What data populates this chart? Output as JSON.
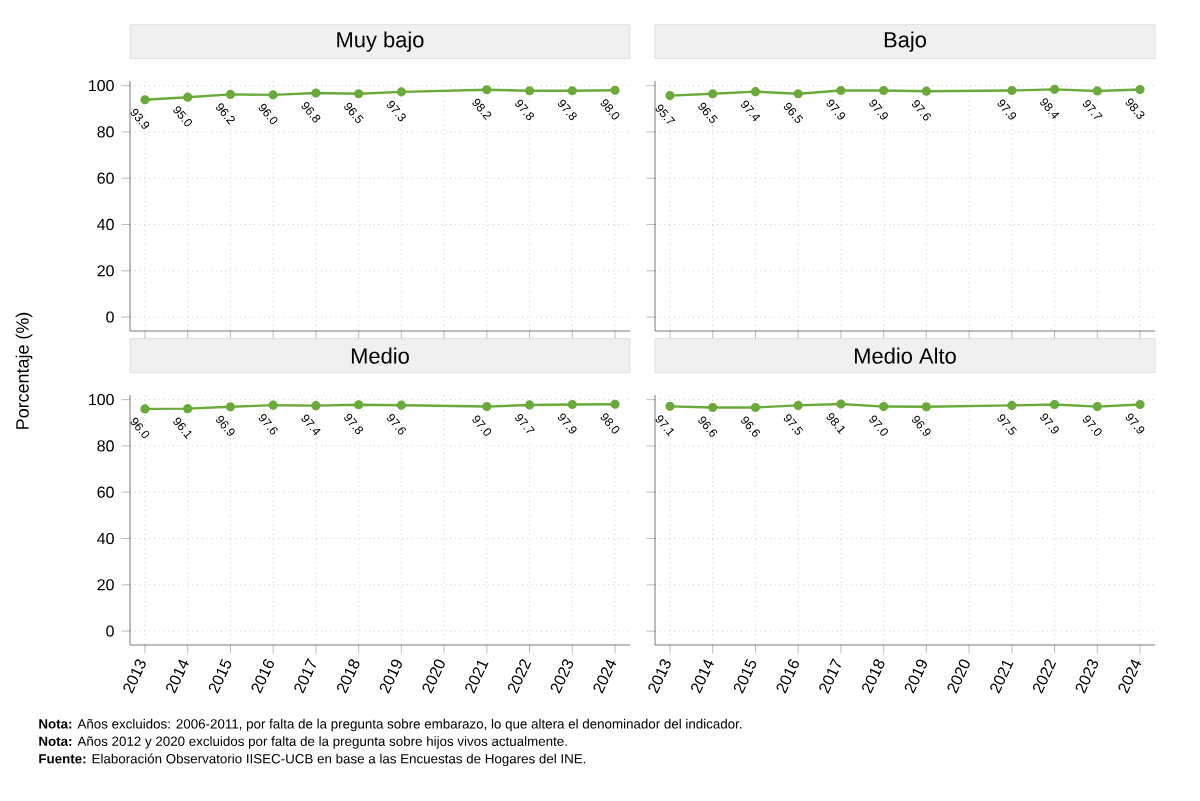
{
  "chart_data": [
    {
      "type": "line",
      "title": "Muy bajo",
      "ylabel": "Porcentaje (%)",
      "annotations": [
        "**Nota:** Años excluidos: 2006-2011, por falta de la pregunta sobre embarazo, lo que altera el denominador del indicador.",
        "**Nota:** Años 2012 y 2020 excluidos por falta de la pregunta sobre hijos vivos actualmente.",
        "**Fuente:** Elaboración Observatorio IISEC-UCB en base a las Encuestas de Hogares del INE."
      ],
      "x": [
        2013,
        2014,
        2015,
        2016,
        2017,
        2018,
        2019,
        2021,
        2022,
        2023,
        2024
      ],
      "values": [
        93.9,
        95.0,
        96.2,
        96.0,
        96.8,
        96.5,
        97.3,
        98.2,
        97.8,
        97.8,
        98.0
      ],
      "value_labels": [
        "93.9",
        "95.0",
        "96.2",
        "96.0",
        "96.8",
        "96.5",
        "97.3",
        "98.2",
        "97.8",
        "97.8",
        "98.0"
      ],
      "color": "#6aaa3a",
      "marker": "circle",
      "xlim": [
        2012.65,
        2024.35
      ],
      "ylim": [
        -6,
        102
      ],
      "xticks": [
        2013,
        2014,
        2015,
        2016,
        2017,
        2018,
        2019,
        2020,
        2021,
        2022,
        2023,
        2024
      ],
      "yticks": [
        0,
        20,
        40,
        60,
        80,
        100
      ],
      "grid": true,
      "tick_labels": "y"
    },
    {
      "type": "line",
      "title": "Bajo",
      "x": [
        2013,
        2014,
        2015,
        2016,
        2017,
        2018,
        2019,
        2021,
        2022,
        2023,
        2024
      ],
      "values": [
        95.7,
        96.5,
        97.4,
        96.5,
        97.9,
        97.9,
        97.6,
        97.9,
        98.4,
        97.7,
        98.3
      ],
      "value_labels": [
        "95.7",
        "96.5",
        "97.4",
        "96.5",
        "97.9",
        "97.9",
        "97.6",
        "97.9",
        "98.4",
        "97.7",
        "98.3"
      ],
      "color": "#6aaa3a",
      "marker": "circle",
      "xlim": [
        2012.65,
        2024.35
      ],
      "ylim": [
        -6,
        102
      ],
      "xticks": [
        2013,
        2014,
        2015,
        2016,
        2017,
        2018,
        2019,
        2020,
        2021,
        2022,
        2023,
        2024
      ],
      "yticks": [
        0,
        20,
        40,
        60,
        80,
        100
      ],
      "grid": true,
      "tick_labels": false
    },
    {
      "type": "line",
      "title": "Medio",
      "x": [
        2013,
        2014,
        2015,
        2016,
        2017,
        2018,
        2019,
        2021,
        2022,
        2023,
        2024
      ],
      "values": [
        96.0,
        96.1,
        96.9,
        97.6,
        97.4,
        97.8,
        97.6,
        97.0,
        97.7,
        97.9,
        98.0
      ],
      "value_labels": [
        "96.0",
        "96.1",
        "96.9",
        "97.6",
        "97.4",
        "97.8",
        "97.6",
        "97.0",
        "97.7",
        "97.9",
        "98.0"
      ],
      "color": "#6aaa3a",
      "marker": "circle",
      "xlim": [
        2012.65,
        2024.35
      ],
      "ylim": [
        -6,
        102
      ],
      "xticks": [
        2013,
        2014,
        2015,
        2016,
        2017,
        2018,
        2019,
        2020,
        2021,
        2022,
        2023,
        2024
      ],
      "yticks": [
        0,
        20,
        40,
        60,
        80,
        100
      ],
      "grid": true
    },
    {
      "type": "line",
      "title": "Medio Alto",
      "x": [
        2013,
        2014,
        2015,
        2016,
        2017,
        2018,
        2019,
        2021,
        2022,
        2023,
        2024
      ],
      "values": [
        97.1,
        96.6,
        96.6,
        97.5,
        98.1,
        97.0,
        96.9,
        97.5,
        97.9,
        97.0,
        97.9
      ],
      "value_labels": [
        "97.1",
        "96.6",
        "96.6",
        "97.5",
        "98.1",
        "97.0",
        "96.9",
        "97.5",
        "97.9",
        "97.0",
        "97.9"
      ],
      "color": "#6aaa3a",
      "marker": "circle",
      "xlim": [
        2012.65,
        2024.35
      ],
      "ylim": [
        -6,
        102
      ],
      "xticks": [
        2013,
        2014,
        2015,
        2016,
        2017,
        2018,
        2019,
        2020,
        2021,
        2022,
        2023,
        2024
      ],
      "yticks": [
        0,
        20,
        40,
        60,
        80,
        100
      ],
      "grid": true,
      "tick_labels": "x"
    }
  ]
}
